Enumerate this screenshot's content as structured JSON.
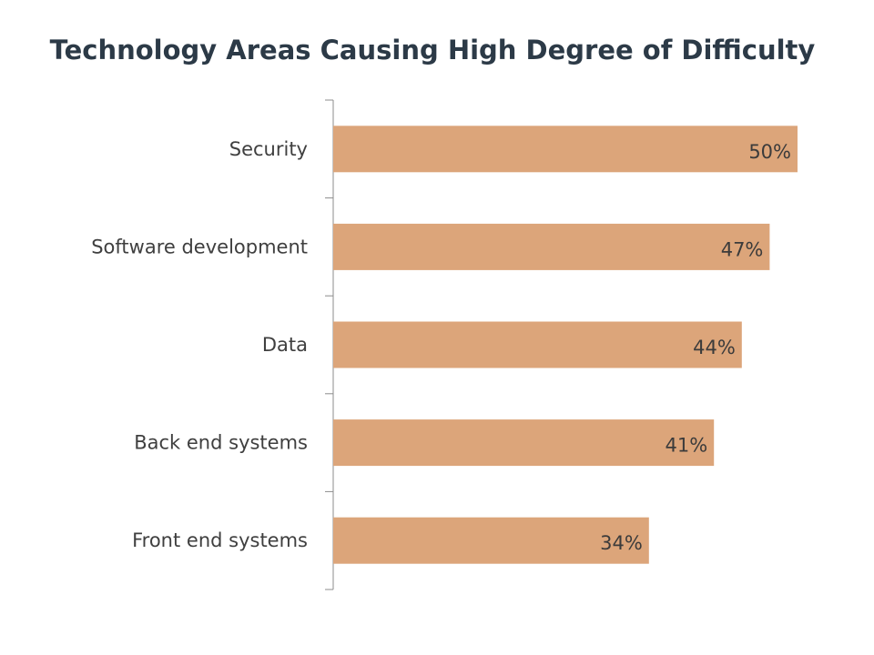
{
  "chart_data": {
    "type": "bar",
    "orientation": "horizontal",
    "title": "Technology Areas Causing High Degree of Difficulty",
    "categories": [
      "Security",
      "Software development",
      "Data",
      "Back end systems",
      "Front end systems"
    ],
    "values": [
      50,
      47,
      44,
      41,
      34
    ],
    "data_labels": [
      "50%",
      "47%",
      "44%",
      "41%",
      "34%"
    ],
    "unit": "%",
    "xlim": [
      0,
      50
    ],
    "xlabel": "",
    "ylabel": "",
    "grid": false,
    "legend": "none",
    "bar_color": "#dca57a"
  }
}
